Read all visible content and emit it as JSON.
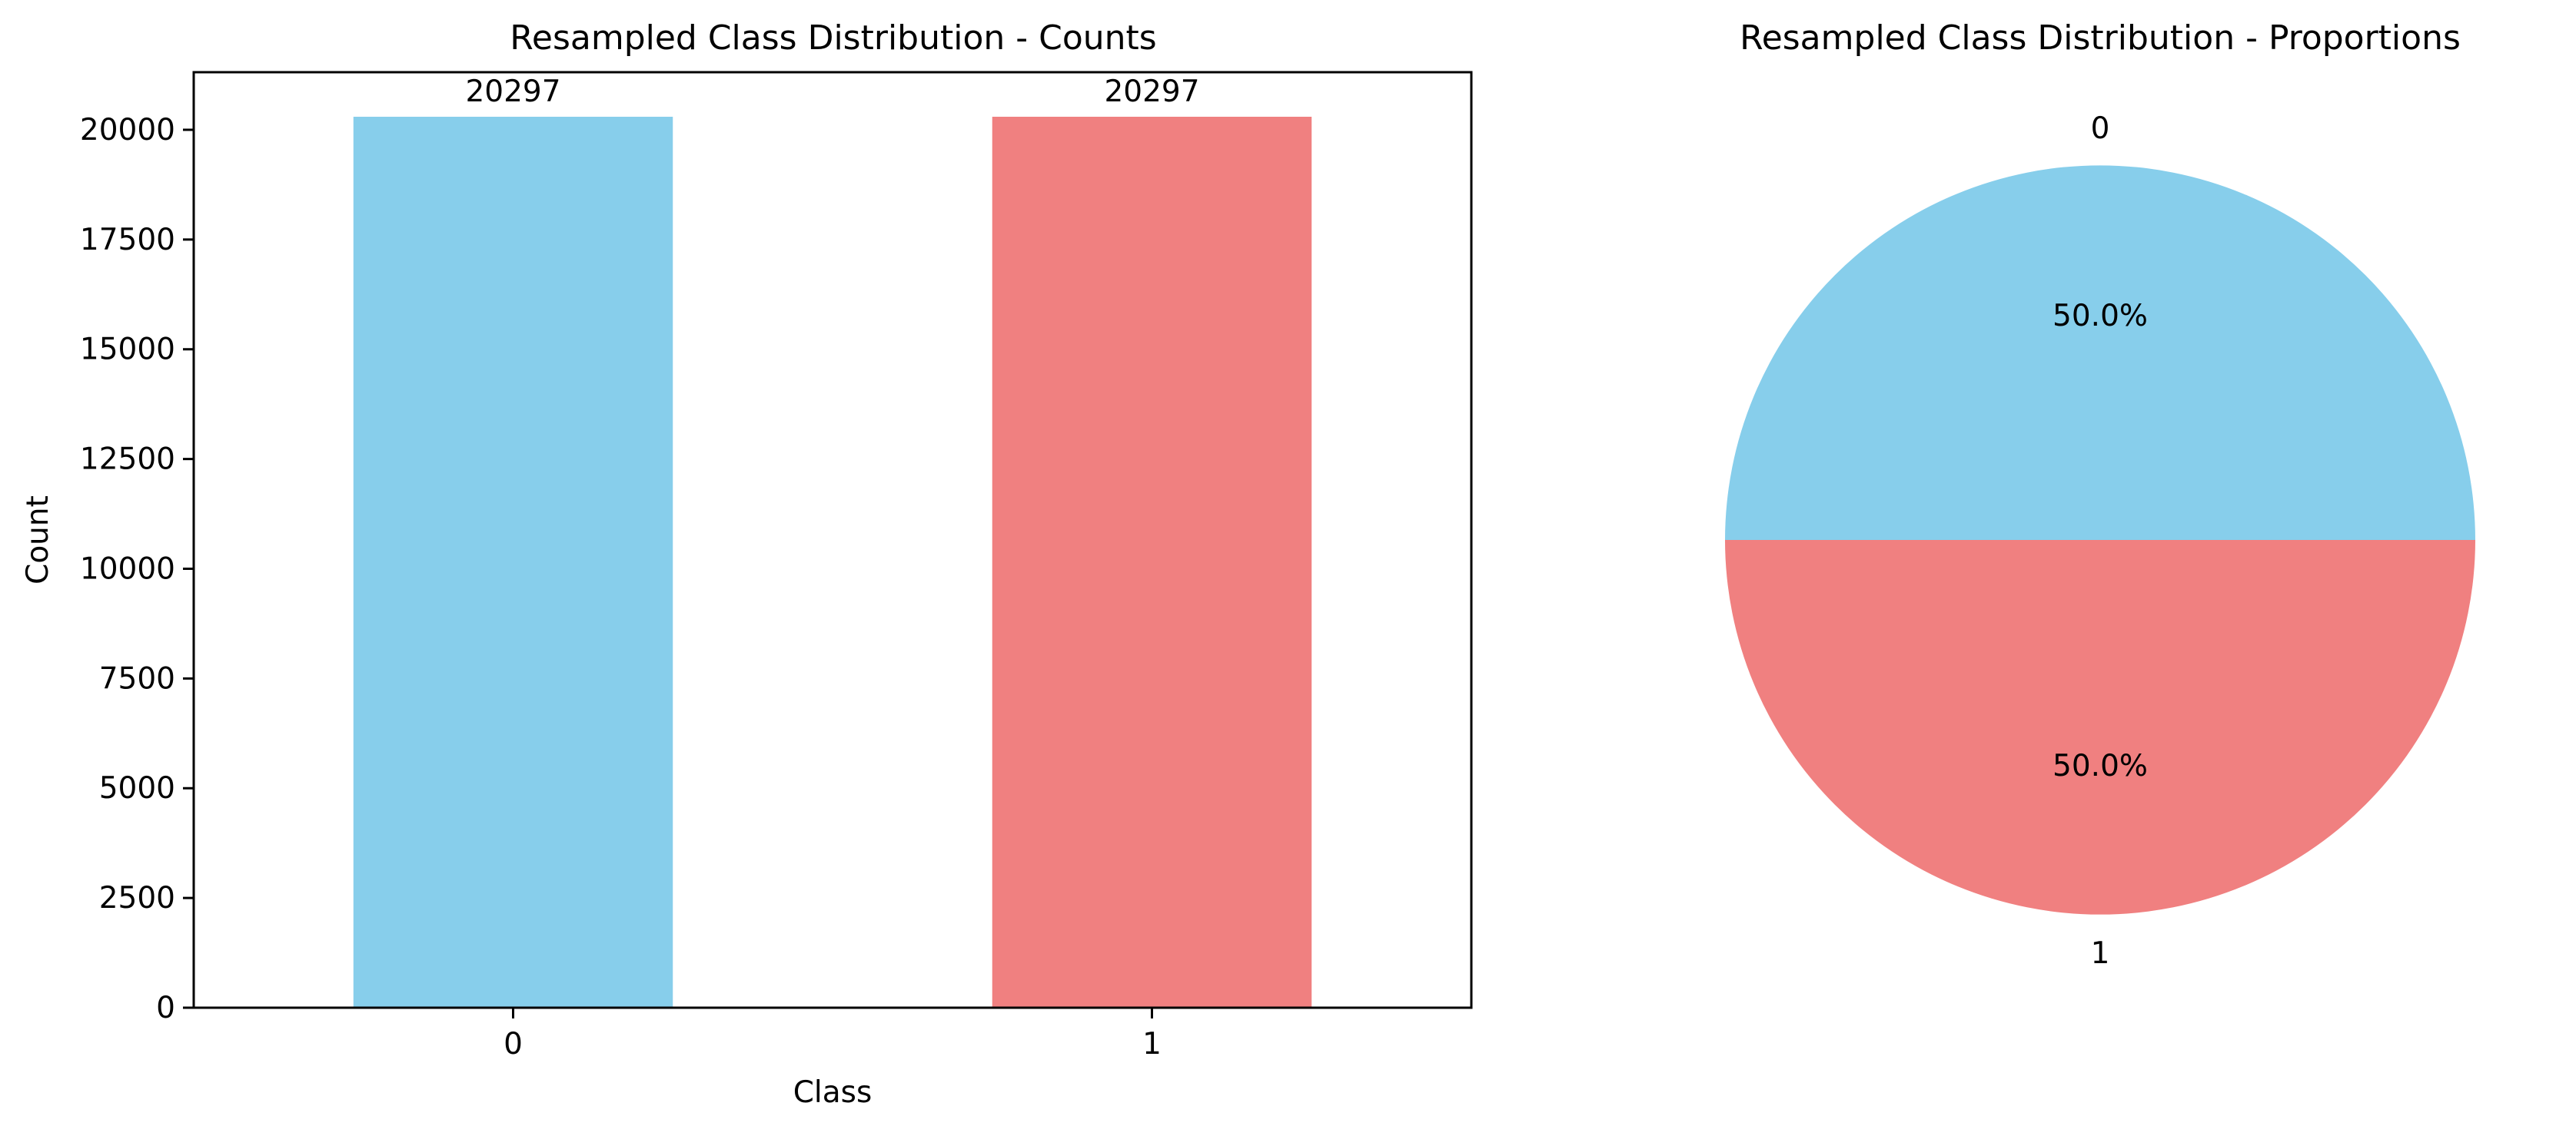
{
  "chart_data": [
    {
      "type": "bar",
      "title": "Resampled Class Distribution - Counts",
      "xlabel": "Class",
      "ylabel": "Count",
      "categories": [
        "0",
        "1"
      ],
      "values": [
        20297,
        20297
      ],
      "data_labels": [
        "20297",
        "20297"
      ],
      "colors": [
        "#87CEEB",
        "#F08080"
      ],
      "ylim": [
        0,
        21312
      ],
      "yticks": [
        0,
        2500,
        5000,
        7500,
        10000,
        12500,
        15000,
        17500,
        20000
      ],
      "ytick_labels": [
        "0",
        "2500",
        "5000",
        "7500",
        "10000",
        "12500",
        "15000",
        "17500",
        "20000"
      ],
      "grid": false,
      "legend": "none"
    },
    {
      "type": "pie",
      "title": "Resampled Class Distribution - Proportions",
      "labels": [
        "0",
        "1"
      ],
      "values": [
        50.0,
        50.0
      ],
      "pct_labels": [
        "50.0%",
        "50.0%"
      ],
      "colors": [
        "#87CEEB",
        "#F08080"
      ],
      "legend": "none"
    }
  ]
}
